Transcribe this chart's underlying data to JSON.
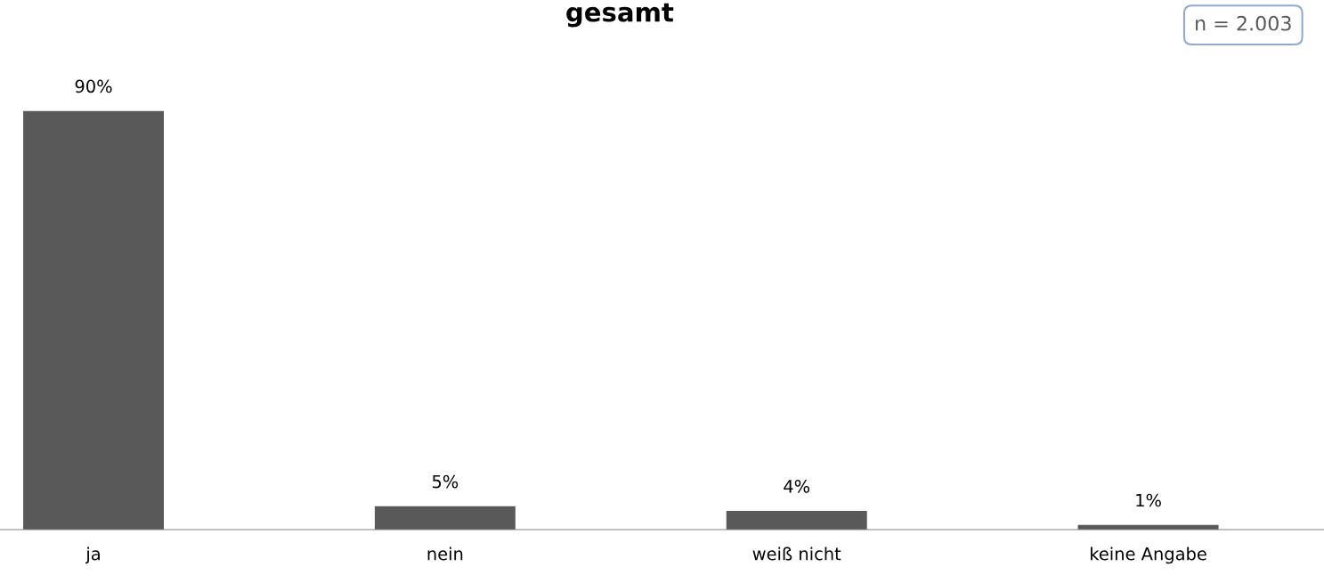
{
  "chart_data": {
    "type": "bar",
    "title": "gesamt",
    "categories": [
      "ja",
      "nein",
      "weiß nicht",
      "keine Angabe"
    ],
    "values": [
      90,
      5,
      4,
      1
    ],
    "color": "#595959",
    "value_labels": [
      "90%",
      "5%",
      "4%",
      "1%"
    ],
    "tick_labels": "x",
    "grid": false,
    "legend": false,
    "annotations": [
      "n = 2.003"
    ]
  }
}
